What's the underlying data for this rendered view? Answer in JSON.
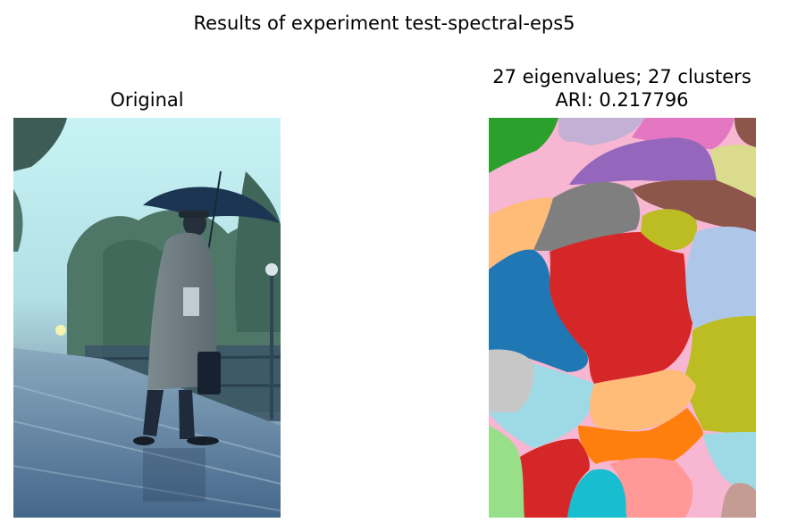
{
  "figure": {
    "suptitle": "Results of experiment test-spectral-eps5"
  },
  "left_panel": {
    "title": "Original"
  },
  "right_panel": {
    "title_line1": "27 eigenvalues; 27 clusters",
    "title_line2": "ARI: 0.217796"
  },
  "colors": {
    "sky": "#c6eef0",
    "trees": "#4f7a6a",
    "coat": "#6d7a80",
    "platform": "#5d7f9a",
    "umbrella": "#1c3553"
  }
}
